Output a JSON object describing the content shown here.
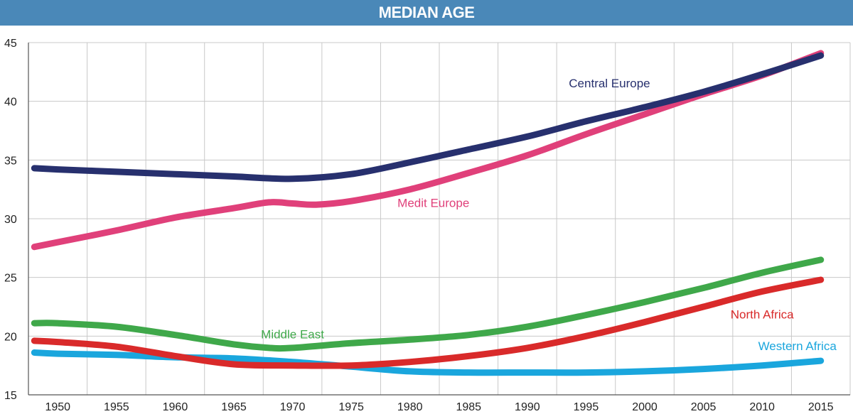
{
  "chart_data": {
    "type": "line",
    "title": "MEDIAN AGE",
    "xlabel": "",
    "ylabel": "",
    "x": [
      1950,
      1955,
      1960,
      1965,
      1970,
      1975,
      1980,
      1985,
      1990,
      1995,
      2000,
      2005,
      2010,
      2015
    ],
    "ylim": [
      15,
      45
    ],
    "yticks": [
      15,
      20,
      25,
      30,
      35,
      40,
      45
    ],
    "grid": true,
    "series": [
      {
        "name": "Central Europe",
        "color": "#27306e",
        "x": [
          1948,
          1950,
          1955,
          1960,
          1965,
          1970,
          1975,
          1980,
          1985,
          1990,
          1995,
          2000,
          2005,
          2010,
          2015
        ],
        "values": [
          34.3,
          34.2,
          34.0,
          33.8,
          33.6,
          33.4,
          33.8,
          34.8,
          35.9,
          37.0,
          38.3,
          39.5,
          40.8,
          42.3,
          43.9
        ]
      },
      {
        "name": "Medit Europe",
        "color": "#e0407a",
        "x": [
          1948,
          1950,
          1955,
          1960,
          1965,
          1968,
          1970,
          1972,
          1975,
          1980,
          1985,
          1990,
          1995,
          2000,
          2005,
          2010,
          2015
        ],
        "values": [
          27.6,
          28.0,
          29.0,
          30.1,
          30.9,
          31.4,
          31.3,
          31.2,
          31.5,
          32.5,
          33.9,
          35.4,
          37.2,
          38.9,
          40.6,
          42.2,
          44.1
        ]
      },
      {
        "name": "Middle East",
        "color": "#3fa84a",
        "x": [
          1948,
          1950,
          1955,
          1960,
          1965,
          1968,
          1970,
          1975,
          1980,
          1985,
          1990,
          1995,
          2000,
          2005,
          2010,
          2015
        ],
        "values": [
          21.1,
          21.1,
          20.8,
          20.1,
          19.3,
          19.0,
          19.0,
          19.4,
          19.7,
          20.1,
          20.8,
          21.8,
          22.9,
          24.1,
          25.4,
          26.5
        ]
      },
      {
        "name": "North Africa",
        "color": "#d92a2a",
        "x": [
          1948,
          1950,
          1955,
          1960,
          1965,
          1970,
          1975,
          1980,
          1985,
          1990,
          1995,
          2000,
          2005,
          2010,
          2015
        ],
        "values": [
          19.6,
          19.5,
          19.1,
          18.3,
          17.6,
          17.5,
          17.5,
          17.8,
          18.3,
          19.0,
          20.0,
          21.2,
          22.5,
          23.8,
          24.8
        ]
      },
      {
        "name": "Western Africa",
        "color": "#1aa6dd",
        "x": [
          1948,
          1950,
          1955,
          1960,
          1965,
          1970,
          1975,
          1980,
          1985,
          1990,
          1995,
          2000,
          2005,
          2010,
          2015
        ],
        "values": [
          18.6,
          18.5,
          18.4,
          18.2,
          18.1,
          17.8,
          17.4,
          17.0,
          16.9,
          16.9,
          16.9,
          17.0,
          17.2,
          17.5,
          17.9
        ]
      }
    ],
    "annotations": [
      {
        "text": "Central Europe",
        "series": "Central Europe",
        "x": 1997,
        "y": 41.2,
        "anchor": "middle"
      },
      {
        "text": "Medit Europe",
        "series": "Medit Europe",
        "x": 1982,
        "y": 31.0,
        "anchor": "middle"
      },
      {
        "text": "Middle East",
        "series": "Middle East",
        "x": 1970,
        "y": 19.8,
        "anchor": "middle"
      },
      {
        "text": "North Africa",
        "series": "North Africa",
        "x": 2010,
        "y": 21.5,
        "anchor": "middle"
      },
      {
        "text": "Western Africa",
        "series": "Western Africa",
        "x": 2013,
        "y": 18.8,
        "anchor": "middle"
      }
    ]
  }
}
